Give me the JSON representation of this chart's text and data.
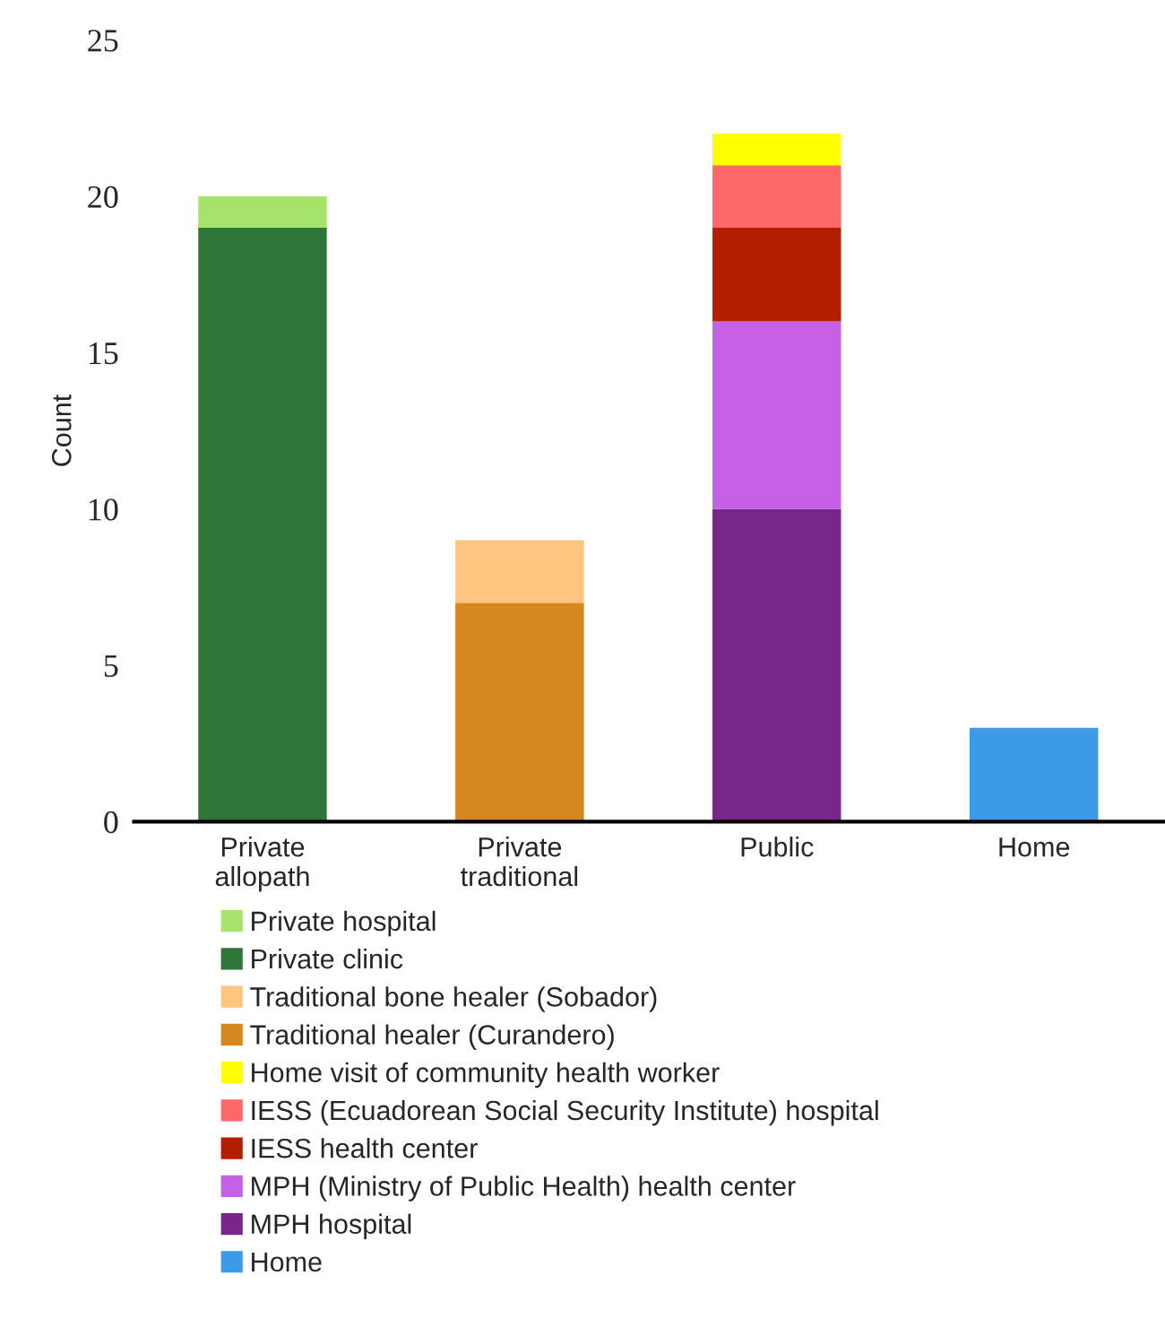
{
  "chart_data": {
    "type": "bar",
    "stacked": true,
    "ylabel": "Count",
    "categories": [
      "Private\nallopath",
      "Private\ntraditional",
      "Public",
      "Home"
    ],
    "series": [
      {
        "name": "Private clinic",
        "color": "#2e7538",
        "values": [
          19,
          null,
          null,
          null
        ]
      },
      {
        "name": "Private hospital",
        "color": "#a6e36a",
        "values": [
          1,
          null,
          null,
          null
        ]
      },
      {
        "name": "Traditional healer (Curandero)",
        "color": "#d4881f",
        "values": [
          null,
          7,
          null,
          null
        ]
      },
      {
        "name": "Traditional bone healer (Sobador)",
        "color": "#fec580",
        "values": [
          null,
          2,
          null,
          null
        ]
      },
      {
        "name": "MPH hospital",
        "color": "#77268a",
        "values": [
          null,
          null,
          10,
          null
        ]
      },
      {
        "name": "MPH (Ministry of Public Health) health center",
        "color": "#c660e6",
        "values": [
          null,
          null,
          6,
          null
        ]
      },
      {
        "name": "IESS health center",
        "color": "#b31e00",
        "values": [
          null,
          null,
          3,
          null
        ]
      },
      {
        "name": "IESS (Ecuadorean Social Security Institute) hospital",
        "color": "#ff6868",
        "values": [
          null,
          null,
          2,
          null
        ]
      },
      {
        "name": "Home visit of community health worker",
        "color": "#ffff00",
        "values": [
          null,
          null,
          1,
          null
        ]
      },
      {
        "name": "Home",
        "color": "#3d9ae6",
        "values": [
          null,
          null,
          null,
          3
        ]
      }
    ],
    "ylim": [
      0,
      25
    ],
    "yticks": [
      0,
      5,
      10,
      15,
      20,
      25
    ],
    "grid": false,
    "legend": "bottom"
  }
}
